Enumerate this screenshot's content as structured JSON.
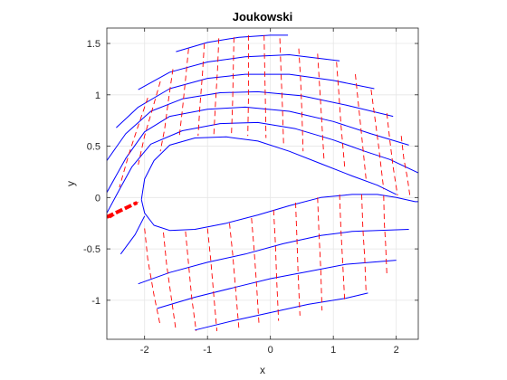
{
  "chart_data": {
    "type": "line",
    "title": "Joukowski",
    "xlabel": "x",
    "ylabel": "y",
    "xlim": [
      -2.6,
      2.35
    ],
    "ylim": [
      -1.38,
      1.65
    ],
    "xticks": [
      -2,
      -1,
      0,
      1,
      2
    ],
    "xtick_labels": [
      "-2",
      "-1",
      "0",
      "1",
      "2"
    ],
    "yticks": [
      -1,
      -0.5,
      0,
      0.5,
      1,
      1.5
    ],
    "ytick_labels": [
      "-1",
      "-0.5",
      "0",
      "0.5",
      "1",
      "1.5"
    ],
    "grid": true,
    "box": true,
    "colors": {
      "streamline": "#0000ff",
      "equipotential": "#ff0000",
      "grid": "#e6e6e6",
      "axes": "#262626"
    },
    "series": [
      {
        "kind": "streamline",
        "points": [
          [
            -1.5,
            1.42
          ],
          [
            -1.0,
            1.51
          ],
          [
            -0.5,
            1.56
          ],
          [
            0.0,
            1.58
          ],
          [
            0.28,
            1.58
          ]
        ]
      },
      {
        "kind": "streamline",
        "points": [
          [
            -2.1,
            1.05
          ],
          [
            -1.6,
            1.22
          ],
          [
            -1.0,
            1.32
          ],
          [
            -0.4,
            1.37
          ],
          [
            0.3,
            1.39
          ],
          [
            1.1,
            1.33
          ]
        ]
      },
      {
        "kind": "streamline",
        "points": [
          [
            -2.45,
            0.68
          ],
          [
            -2.1,
            0.88
          ],
          [
            -1.6,
            1.06
          ],
          [
            -1.0,
            1.16
          ],
          [
            -0.4,
            1.2
          ],
          [
            0.3,
            1.2
          ],
          [
            1.0,
            1.14
          ],
          [
            1.65,
            1.06
          ]
        ]
      },
      {
        "kind": "streamline",
        "points": [
          [
            -2.6,
            0.36
          ],
          [
            -2.3,
            0.62
          ],
          [
            -1.9,
            0.84
          ],
          [
            -1.4,
            0.96
          ],
          [
            -0.8,
            1.02
          ],
          [
            -0.2,
            1.03
          ],
          [
            0.5,
            0.99
          ],
          [
            1.2,
            0.9
          ],
          [
            1.95,
            0.79
          ]
        ]
      },
      {
        "kind": "streamline",
        "points": [
          [
            -2.6,
            0.05
          ],
          [
            -2.3,
            0.38
          ],
          [
            -2.0,
            0.64
          ],
          [
            -1.6,
            0.79
          ],
          [
            -1.0,
            0.86
          ],
          [
            -0.4,
            0.88
          ],
          [
            0.3,
            0.84
          ],
          [
            1.0,
            0.74
          ],
          [
            1.6,
            0.62
          ],
          [
            2.2,
            0.51
          ]
        ]
      },
      {
        "kind": "streamline",
        "points": [
          [
            -2.6,
            -0.15
          ],
          [
            -2.38,
            0.1
          ],
          [
            -2.2,
            0.3
          ],
          [
            -1.9,
            0.52
          ],
          [
            -1.4,
            0.65
          ],
          [
            -0.8,
            0.72
          ],
          [
            -0.2,
            0.73
          ],
          [
            0.4,
            0.67
          ],
          [
            1.0,
            0.56
          ],
          [
            1.5,
            0.45
          ],
          [
            1.9,
            0.37
          ],
          [
            2.35,
            0.24
          ]
        ]
      },
      {
        "kind": "streamline",
        "points": [
          [
            -2.05,
            -0.02
          ],
          [
            -2.0,
            0.18
          ],
          [
            -1.85,
            0.36
          ],
          [
            -1.6,
            0.51
          ],
          [
            -1.2,
            0.58
          ],
          [
            -0.7,
            0.59
          ],
          [
            -0.2,
            0.55
          ],
          [
            0.3,
            0.45
          ],
          [
            0.8,
            0.33
          ],
          [
            1.3,
            0.21
          ],
          [
            1.7,
            0.12
          ],
          [
            2.0,
            0.03
          ]
        ]
      },
      {
        "kind": "streamline",
        "points": [
          [
            -2.05,
            -0.02
          ],
          [
            -2.0,
            -0.15
          ],
          [
            -1.85,
            -0.27
          ],
          [
            -1.6,
            -0.32
          ],
          [
            -1.2,
            -0.31
          ],
          [
            -0.7,
            -0.25
          ],
          [
            -0.2,
            -0.17
          ],
          [
            0.3,
            -0.08
          ],
          [
            0.8,
            0.0
          ],
          [
            1.3,
            0.03
          ],
          [
            1.7,
            0.03
          ],
          [
            2.0,
            0.0
          ]
        ]
      },
      {
        "kind": "streamline",
        "points": [
          [
            2.0,
            0.0
          ],
          [
            2.3,
            -0.04
          ],
          [
            2.35,
            -0.04
          ]
        ]
      },
      {
        "kind": "streamline",
        "points": [
          [
            -2.0,
            -0.18
          ],
          [
            -2.15,
            -0.36
          ],
          [
            -2.38,
            -0.55
          ]
        ]
      },
      {
        "kind": "streamline",
        "points": [
          [
            -2.1,
            -0.84
          ],
          [
            -1.6,
            -0.73
          ],
          [
            -1.0,
            -0.63
          ],
          [
            -0.4,
            -0.55
          ],
          [
            0.2,
            -0.45
          ],
          [
            0.8,
            -0.37
          ],
          [
            1.3,
            -0.33
          ],
          [
            2.2,
            -0.31
          ]
        ]
      },
      {
        "kind": "streamline",
        "points": [
          [
            -1.8,
            -1.08
          ],
          [
            -1.2,
            -0.97
          ],
          [
            -0.6,
            -0.88
          ],
          [
            0.0,
            -0.79
          ],
          [
            0.6,
            -0.72
          ],
          [
            1.2,
            -0.65
          ],
          [
            2.0,
            -0.61
          ]
        ]
      },
      {
        "kind": "streamline",
        "points": [
          [
            -1.2,
            -1.29
          ],
          [
            -0.6,
            -1.2
          ],
          [
            0.0,
            -1.12
          ],
          [
            0.6,
            -1.04
          ],
          [
            1.2,
            -0.98
          ],
          [
            1.55,
            -0.93
          ]
        ]
      },
      {
        "kind": "equipotential",
        "points": [
          [
            -1.95,
            0.97
          ],
          [
            -2.1,
            0.7
          ],
          [
            -2.25,
            0.42
          ],
          [
            -2.4,
            0.1
          ]
        ]
      },
      {
        "kind": "equipotential",
        "points": [
          [
            -1.75,
            1.13
          ],
          [
            -1.88,
            0.85
          ],
          [
            -2.0,
            0.6
          ],
          [
            -2.1,
            0.32
          ]
        ]
      },
      {
        "kind": "equipotential",
        "points": [
          [
            -1.55,
            1.25
          ],
          [
            -1.62,
            0.95
          ],
          [
            -1.68,
            0.67
          ],
          [
            -1.75,
            0.45
          ]
        ]
      },
      {
        "kind": "equipotential",
        "points": [
          [
            -1.3,
            1.45
          ],
          [
            -1.35,
            1.15
          ],
          [
            -1.4,
            0.85
          ],
          [
            -1.45,
            0.58
          ]
        ]
      },
      {
        "kind": "equipotential",
        "points": [
          [
            -1.05,
            1.5
          ],
          [
            -1.08,
            1.2
          ],
          [
            -1.12,
            0.9
          ],
          [
            -1.15,
            0.6
          ]
        ]
      },
      {
        "kind": "equipotential",
        "points": [
          [
            -0.82,
            1.55
          ],
          [
            -0.84,
            1.25
          ],
          [
            -0.87,
            0.95
          ],
          [
            -0.9,
            0.6
          ]
        ]
      },
      {
        "kind": "equipotential",
        "points": [
          [
            -0.58,
            1.56
          ],
          [
            -0.59,
            1.26
          ],
          [
            -0.6,
            0.95
          ],
          [
            -0.62,
            0.6
          ]
        ]
      },
      {
        "kind": "equipotential",
        "points": [
          [
            -0.35,
            1.58
          ],
          [
            -0.35,
            1.26
          ],
          [
            -0.35,
            0.95
          ],
          [
            -0.36,
            0.6
          ]
        ]
      },
      {
        "kind": "equipotential",
        "points": [
          [
            -0.1,
            1.58
          ],
          [
            -0.09,
            1.25
          ],
          [
            -0.08,
            0.95
          ],
          [
            -0.07,
            0.58
          ]
        ]
      },
      {
        "kind": "equipotential",
        "points": [
          [
            0.15,
            1.55
          ],
          [
            0.17,
            1.2
          ],
          [
            0.19,
            0.9
          ],
          [
            0.21,
            0.5
          ]
        ]
      },
      {
        "kind": "equipotential",
        "points": [
          [
            0.45,
            1.45
          ],
          [
            0.48,
            1.15
          ],
          [
            0.5,
            0.85
          ],
          [
            0.52,
            0.45
          ]
        ]
      },
      {
        "kind": "equipotential",
        "points": [
          [
            0.75,
            1.4
          ],
          [
            0.78,
            1.1
          ],
          [
            0.81,
            0.8
          ],
          [
            0.85,
            0.38
          ]
        ]
      },
      {
        "kind": "equipotential",
        "points": [
          [
            1.05,
            1.32
          ],
          [
            1.09,
            1.0
          ],
          [
            1.12,
            0.72
          ],
          [
            1.18,
            0.3
          ]
        ]
      },
      {
        "kind": "equipotential",
        "points": [
          [
            1.35,
            1.2
          ],
          [
            1.4,
            0.9
          ],
          [
            1.45,
            0.6
          ],
          [
            1.52,
            0.18
          ]
        ]
      },
      {
        "kind": "equipotential",
        "points": [
          [
            1.6,
            1.05
          ],
          [
            1.66,
            0.78
          ],
          [
            1.72,
            0.5
          ],
          [
            1.8,
            0.08
          ]
        ]
      },
      {
        "kind": "equipotential",
        "points": [
          [
            1.85,
            0.82
          ],
          [
            1.9,
            0.55
          ],
          [
            1.95,
            0.3
          ],
          [
            2.02,
            0.02
          ]
        ]
      },
      {
        "kind": "equipotential",
        "points": [
          [
            2.08,
            0.6
          ],
          [
            2.12,
            0.38
          ],
          [
            2.18,
            0.18
          ],
          [
            2.22,
            0.0
          ]
        ]
      },
      {
        "kind": "equipotential",
        "points": [
          [
            -2.55,
            -0.2
          ],
          [
            -2.3,
            -0.1
          ],
          [
            -2.05,
            -0.03
          ]
        ]
      },
      {
        "kind": "equipotential",
        "points": [
          [
            -2.0,
            -0.3
          ],
          [
            -1.95,
            -0.6
          ],
          [
            -1.85,
            -0.95
          ],
          [
            -1.75,
            -1.25
          ]
        ]
      },
      {
        "kind": "equipotential",
        "points": [
          [
            -1.7,
            -0.34
          ],
          [
            -1.65,
            -0.65
          ],
          [
            -1.57,
            -1.0
          ],
          [
            -1.5,
            -1.3
          ]
        ]
      },
      {
        "kind": "equipotential",
        "points": [
          [
            -1.35,
            -0.33
          ],
          [
            -1.3,
            -0.65
          ],
          [
            -1.25,
            -0.98
          ],
          [
            -1.18,
            -1.3
          ]
        ]
      },
      {
        "kind": "equipotential",
        "points": [
          [
            -1.0,
            -0.3
          ],
          [
            -0.95,
            -0.6
          ],
          [
            -0.9,
            -0.95
          ],
          [
            -0.85,
            -1.3
          ]
        ]
      },
      {
        "kind": "equipotential",
        "points": [
          [
            -0.65,
            -0.25
          ],
          [
            -0.6,
            -0.55
          ],
          [
            -0.55,
            -0.92
          ],
          [
            -0.5,
            -1.28
          ]
        ]
      },
      {
        "kind": "equipotential",
        "points": [
          [
            -0.3,
            -0.2
          ],
          [
            -0.26,
            -0.5
          ],
          [
            -0.22,
            -0.85
          ],
          [
            -0.18,
            -1.25
          ]
        ]
      },
      {
        "kind": "equipotential",
        "points": [
          [
            0.05,
            -0.12
          ],
          [
            0.08,
            -0.45
          ],
          [
            0.1,
            -0.8
          ],
          [
            0.13,
            -1.2
          ]
        ]
      },
      {
        "kind": "equipotential",
        "points": [
          [
            0.4,
            -0.05
          ],
          [
            0.42,
            -0.38
          ],
          [
            0.44,
            -0.75
          ],
          [
            0.47,
            -1.15
          ]
        ]
      },
      {
        "kind": "equipotential",
        "points": [
          [
            0.75,
            0.0
          ],
          [
            0.77,
            -0.32
          ],
          [
            0.8,
            -0.7
          ],
          [
            0.82,
            -1.1
          ]
        ]
      },
      {
        "kind": "equipotential",
        "points": [
          [
            1.1,
            0.03
          ],
          [
            1.12,
            -0.3
          ],
          [
            1.15,
            -0.65
          ],
          [
            1.18,
            -1.0
          ]
        ]
      },
      {
        "kind": "equipotential",
        "points": [
          [
            1.45,
            0.03
          ],
          [
            1.47,
            -0.3
          ],
          [
            1.5,
            -0.6
          ],
          [
            1.52,
            -0.92
          ]
        ]
      },
      {
        "kind": "equipotential",
        "points": [
          [
            1.8,
            0.02
          ],
          [
            1.81,
            -0.25
          ],
          [
            1.83,
            -0.45
          ],
          [
            1.85,
            -0.75
          ]
        ]
      }
    ],
    "highlight_segment": {
      "color": "#ff0000",
      "points": [
        [
          -2.6,
          -0.19
        ],
        [
          -2.12,
          -0.05
        ]
      ]
    }
  }
}
